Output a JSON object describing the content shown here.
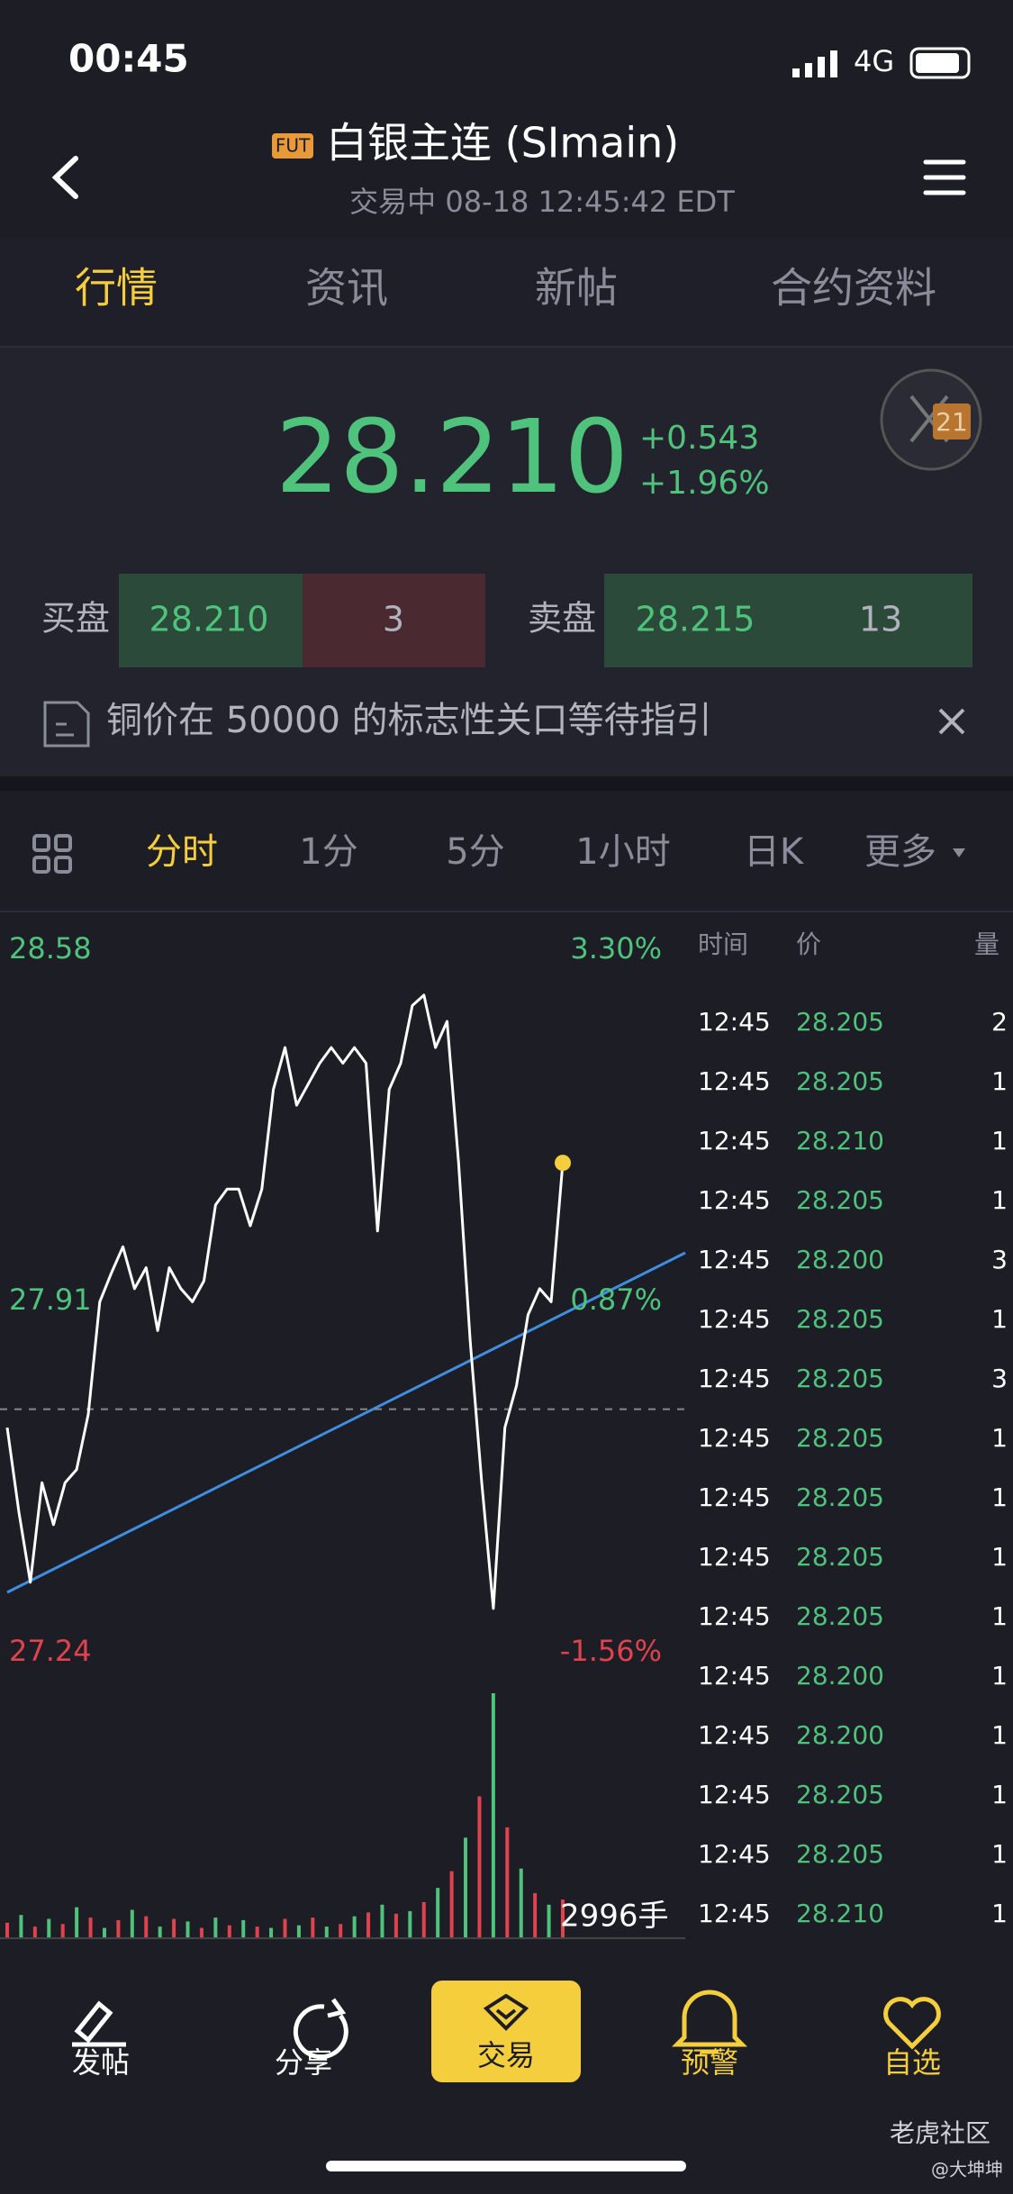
{
  "status_bar": {
    "time": "00:45",
    "network": "4G"
  },
  "header": {
    "badge": "FUT",
    "title": "白银主连 (SImain)",
    "subtitle": "交易中 08-18 12:45:42 EDT"
  },
  "tabs": [
    "行情",
    "资讯",
    "新帖",
    "合约资料"
  ],
  "active_tab": 0,
  "quote": {
    "price": "28.210",
    "change": "+0.543",
    "change_pct": "+1.96%",
    "badge": "21"
  },
  "order_book": {
    "bid_label": "买盘",
    "bid_price": "28.210",
    "bid_size": "3",
    "ask_label": "卖盘",
    "ask_price": "28.215",
    "ask_size": "13"
  },
  "news": "铜价在 50000 的标志性关口等待指引",
  "periods": [
    "分时",
    "1分",
    "5分",
    "1小时",
    "日K",
    "更多"
  ],
  "active_period": 0,
  "chart_data": {
    "type": "line",
    "ylim": [
      27.24,
      28.58
    ],
    "yticks": [
      28.58,
      27.91,
      27.24
    ],
    "y2lim": [
      -1.56,
      3.3
    ],
    "y2ticks": [
      {
        "value": 3.3,
        "label": "3.30%"
      },
      {
        "value": 0.87,
        "label": "0.87%"
      },
      {
        "value": -1.56,
        "label": "-1.56%"
      }
    ],
    "series": [
      {
        "color": "#ffffff",
        "values": [
          27.635,
          27.475,
          27.34,
          27.53,
          27.45,
          27.53,
          27.555,
          27.66,
          27.875,
          27.93,
          27.98,
          27.9,
          27.94,
          27.82,
          27.94,
          27.9,
          27.875,
          27.915,
          28.06,
          28.09,
          28.09,
          28.02,
          28.09,
          28.28,
          28.36,
          28.25,
          28.29,
          28.33,
          28.36,
          28.33,
          28.36,
          28.33,
          28.01,
          28.28,
          28.33,
          28.44,
          28.46,
          28.36,
          28.41,
          28.14,
          27.8,
          27.53,
          27.29,
          27.635,
          27.715,
          27.85,
          27.9,
          27.875,
          28.14
        ]
      }
    ],
    "volume": {
      "colors": [
        "#e0434e",
        "#4fc27c"
      ],
      "values": [
        1200,
        1800,
        900,
        1500,
        1100,
        2400,
        1600,
        800,
        1400,
        2200,
        1700,
        900,
        1500,
        1300,
        800,
        1600,
        1000,
        1400,
        900,
        800,
        1500,
        1000,
        1600,
        900,
        1100,
        1700,
        2000,
        2600,
        1900,
        2100,
        2800,
        3900,
        5200,
        7800,
        11000,
        19000,
        8600,
        5400,
        3500,
        2600,
        2996
      ],
      "last_label": "2996手"
    }
  },
  "trades": {
    "headers": [
      "时间",
      "价",
      "量"
    ],
    "rows": [
      [
        "12:45",
        "28.205",
        "2"
      ],
      [
        "12:45",
        "28.205",
        "1"
      ],
      [
        "12:45",
        "28.210",
        "1"
      ],
      [
        "12:45",
        "28.205",
        "1"
      ],
      [
        "12:45",
        "28.200",
        "3"
      ],
      [
        "12:45",
        "28.205",
        "1"
      ],
      [
        "12:45",
        "28.205",
        "3"
      ],
      [
        "12:45",
        "28.205",
        "1"
      ],
      [
        "12:45",
        "28.205",
        "1"
      ],
      [
        "12:45",
        "28.205",
        "1"
      ],
      [
        "12:45",
        "28.205",
        "1"
      ],
      [
        "12:45",
        "28.200",
        "1"
      ],
      [
        "12:45",
        "28.200",
        "1"
      ],
      [
        "12:45",
        "28.205",
        "1"
      ],
      [
        "12:45",
        "28.205",
        "1"
      ],
      [
        "12:45",
        "28.210",
        "1"
      ]
    ]
  },
  "nav": [
    "发帖",
    "分享",
    "交易",
    "预警",
    "自选"
  ],
  "watermark": {
    "brand": "老虎社区",
    "user": "@大坤坤"
  }
}
